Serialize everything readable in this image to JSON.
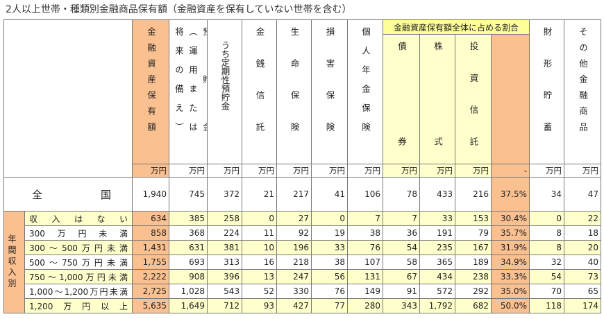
{
  "title": "2人以上世帯・種類別金融商品保有額（金融資産を保有していない世帯を含む）",
  "table": {
    "group_header": "金融資産保有額全体に占める割合",
    "columns": [
      {
        "label": "金融資産保有額",
        "unit": "万円"
      },
      {
        "lines": [
          "預貯金",
          "（運用または",
          "将来の備え）"
        ],
        "unit": "万円"
      },
      {
        "label": "うち定期性預貯金",
        "unit": "万円"
      },
      {
        "label": "金銭信託",
        "unit": "万円"
      },
      {
        "label": "生命保険",
        "unit": "万円"
      },
      {
        "label": "損害保険",
        "unit": "万円"
      },
      {
        "label": "個人年金保険",
        "unit": "万円"
      },
      {
        "label": "債券",
        "unit": "万円"
      },
      {
        "label": "株式",
        "unit": "万円"
      },
      {
        "label": "投資信託",
        "unit": "万円"
      },
      {
        "unit": "-"
      },
      {
        "label": "財形貯蓄",
        "unit": "万円"
      },
      {
        "label": "その他金融商品",
        "unit": "万円"
      }
    ],
    "national": {
      "label": "全国",
      "values": [
        "1,940",
        "745",
        "372",
        "21",
        "217",
        "41",
        "106",
        "78",
        "433",
        "216",
        "37.5%",
        "34",
        "47"
      ]
    },
    "row_group": "年間収入別",
    "rows": [
      {
        "label": "収入はない",
        "values": [
          "634",
          "385",
          "258",
          "0",
          "27",
          "0",
          "7",
          "7",
          "33",
          "153",
          "30.4%",
          "0",
          "22"
        ]
      },
      {
        "label": "300万円未満",
        "values": [
          "858",
          "368",
          "224",
          "11",
          "92",
          "19",
          "38",
          "36",
          "191",
          "79",
          "35.7%",
          "8",
          "18"
        ]
      },
      {
        "label": "300～500万円未満",
        "values": [
          "1,431",
          "631",
          "381",
          "10",
          "196",
          "33",
          "76",
          "54",
          "235",
          "167",
          "31.9%",
          "8",
          "20"
        ]
      },
      {
        "label": "500～750万円未満",
        "values": [
          "1,755",
          "693",
          "313",
          "16",
          "218",
          "38",
          "107",
          "58",
          "365",
          "189",
          "34.9%",
          "32",
          "40"
        ]
      },
      {
        "label": "750～1,000万円未満",
        "values": [
          "2,222",
          "908",
          "396",
          "13",
          "247",
          "56",
          "131",
          "67",
          "434",
          "238",
          "33.3%",
          "54",
          "73"
        ]
      },
      {
        "label": "1,000～1,200万円未満",
        "values": [
          "2,725",
          "1,028",
          "543",
          "52",
          "330",
          "76",
          "149",
          "91",
          "572",
          "292",
          "35.0%",
          "70",
          "65"
        ]
      },
      {
        "label": "1,200万円以上",
        "values": [
          "5,635",
          "1,649",
          "712",
          "93",
          "427",
          "77",
          "280",
          "343",
          "1,792",
          "682",
          "50.0%",
          "118",
          "174"
        ]
      }
    ]
  }
}
